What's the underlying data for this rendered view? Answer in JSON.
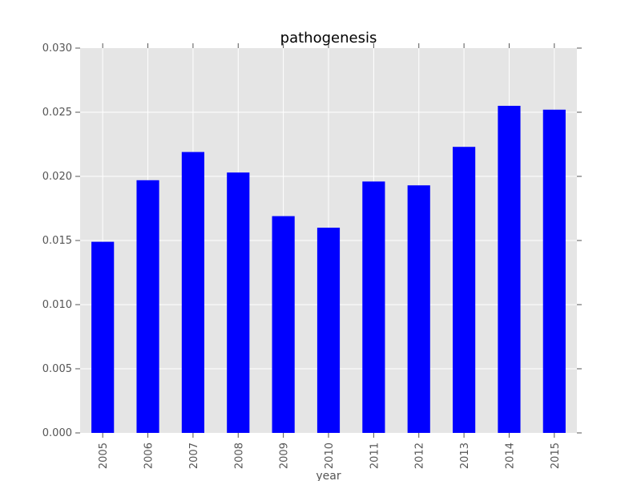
{
  "chart_data": {
    "type": "bar",
    "title": "pathogenesis",
    "xlabel": "year",
    "ylabel": "",
    "categories": [
      "2005",
      "2006",
      "2007",
      "2008",
      "2009",
      "2010",
      "2011",
      "2012",
      "2013",
      "2014",
      "2015"
    ],
    "values": [
      0.0149,
      0.0197,
      0.0219,
      0.0203,
      0.0169,
      0.016,
      0.0196,
      0.0193,
      0.0223,
      0.0255,
      0.0252
    ],
    "ylim": [
      0,
      0.03
    ],
    "yticks": [
      "0.000",
      "0.005",
      "0.010",
      "0.015",
      "0.020",
      "0.025",
      "0.030"
    ],
    "ytick_values": [
      0,
      0.005,
      0.01,
      0.015,
      0.02,
      0.025,
      0.03
    ],
    "grid": true,
    "legend": "none",
    "colors": {
      "bar": "#0000ff",
      "plot_background": "#e5e5e5",
      "grid": "#ffffff",
      "tick_text": "#555555"
    }
  }
}
